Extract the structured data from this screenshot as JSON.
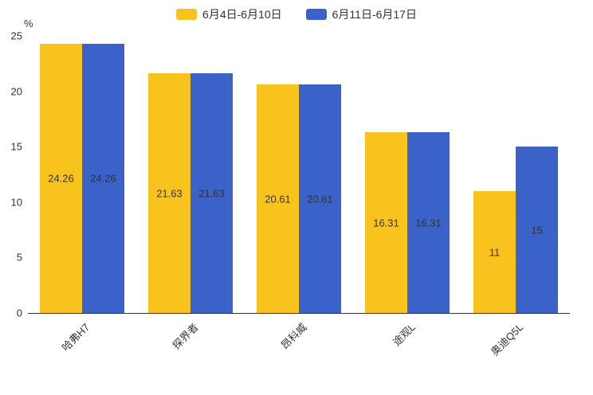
{
  "chart_data": {
    "type": "bar",
    "categories": [
      "哈弗H7",
      "探界者",
      "昂科威",
      "途观L",
      "奥迪Q5L"
    ],
    "series": [
      {
        "name": "6月4日-6月10日",
        "color": "#F8C31C",
        "values": [
          24.26,
          21.63,
          20.61,
          16.31,
          11
        ]
      },
      {
        "name": "6月11日-6月17日",
        "color": "#3A62C9",
        "values": [
          24.26,
          21.63,
          20.61,
          16.31,
          15
        ]
      }
    ],
    "data_labels": [
      "24.26",
      "21.63",
      "20.61",
      "16.31",
      "11",
      "15"
    ],
    "title": "",
    "xlabel": "",
    "ylabel": "%",
    "ylim": [
      0,
      25
    ],
    "yticks": [
      0,
      5,
      10,
      15,
      20,
      25
    ],
    "legend_position": "top",
    "grid": false,
    "colors": {
      "axis": "#333333",
      "label_text": "#333333"
    }
  }
}
